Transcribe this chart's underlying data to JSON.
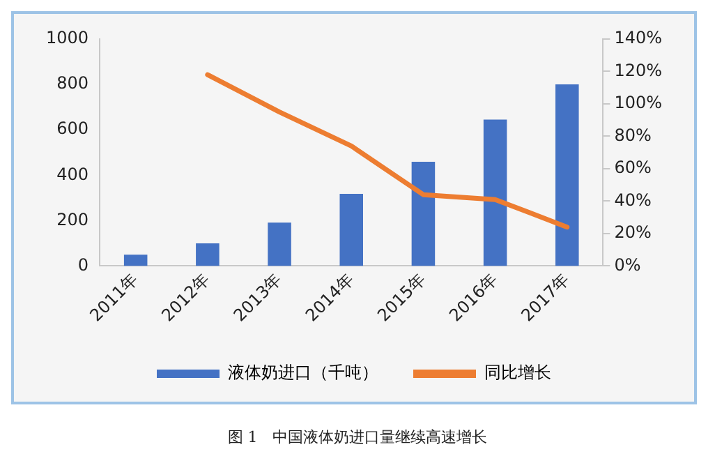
{
  "chart_data": {
    "type": "bar",
    "categories": [
      "2011年",
      "2012年",
      "2013年",
      "2014年",
      "2015年",
      "2016年",
      "2017年"
    ],
    "series": [
      {
        "name": "液体奶进口（千吨）",
        "color": "#4472c4",
        "values": [
          50,
          100,
          191,
          318,
          459,
          645,
          800
        ]
      },
      {
        "name": "同比增长",
        "type": "line",
        "axis": "y2",
        "color": "#ed7d31",
        "values": [
          null,
          118,
          95,
          74,
          44,
          41,
          24
        ]
      }
    ],
    "ylim": [
      0,
      1000
    ],
    "yticks": [
      0,
      200,
      400,
      600,
      800,
      1000
    ],
    "y2lim": [
      0,
      140
    ],
    "y2ticks": [
      {
        "value": 0,
        "label": "0%"
      },
      {
        "value": 20,
        "label": "20%"
      },
      {
        "value": 40,
        "label": "40%"
      },
      {
        "value": 60,
        "label": "60%"
      },
      {
        "value": 80,
        "label": "80%"
      },
      {
        "value": 100,
        "label": "100%"
      },
      {
        "value": 120,
        "label": "120%"
      },
      {
        "value": 140,
        "label": "140%"
      }
    ],
    "grid": false,
    "legend": "bottom",
    "marker": "none",
    "annotations": [
      "图 1　中国液体奶进口量继续高速增长"
    ]
  }
}
